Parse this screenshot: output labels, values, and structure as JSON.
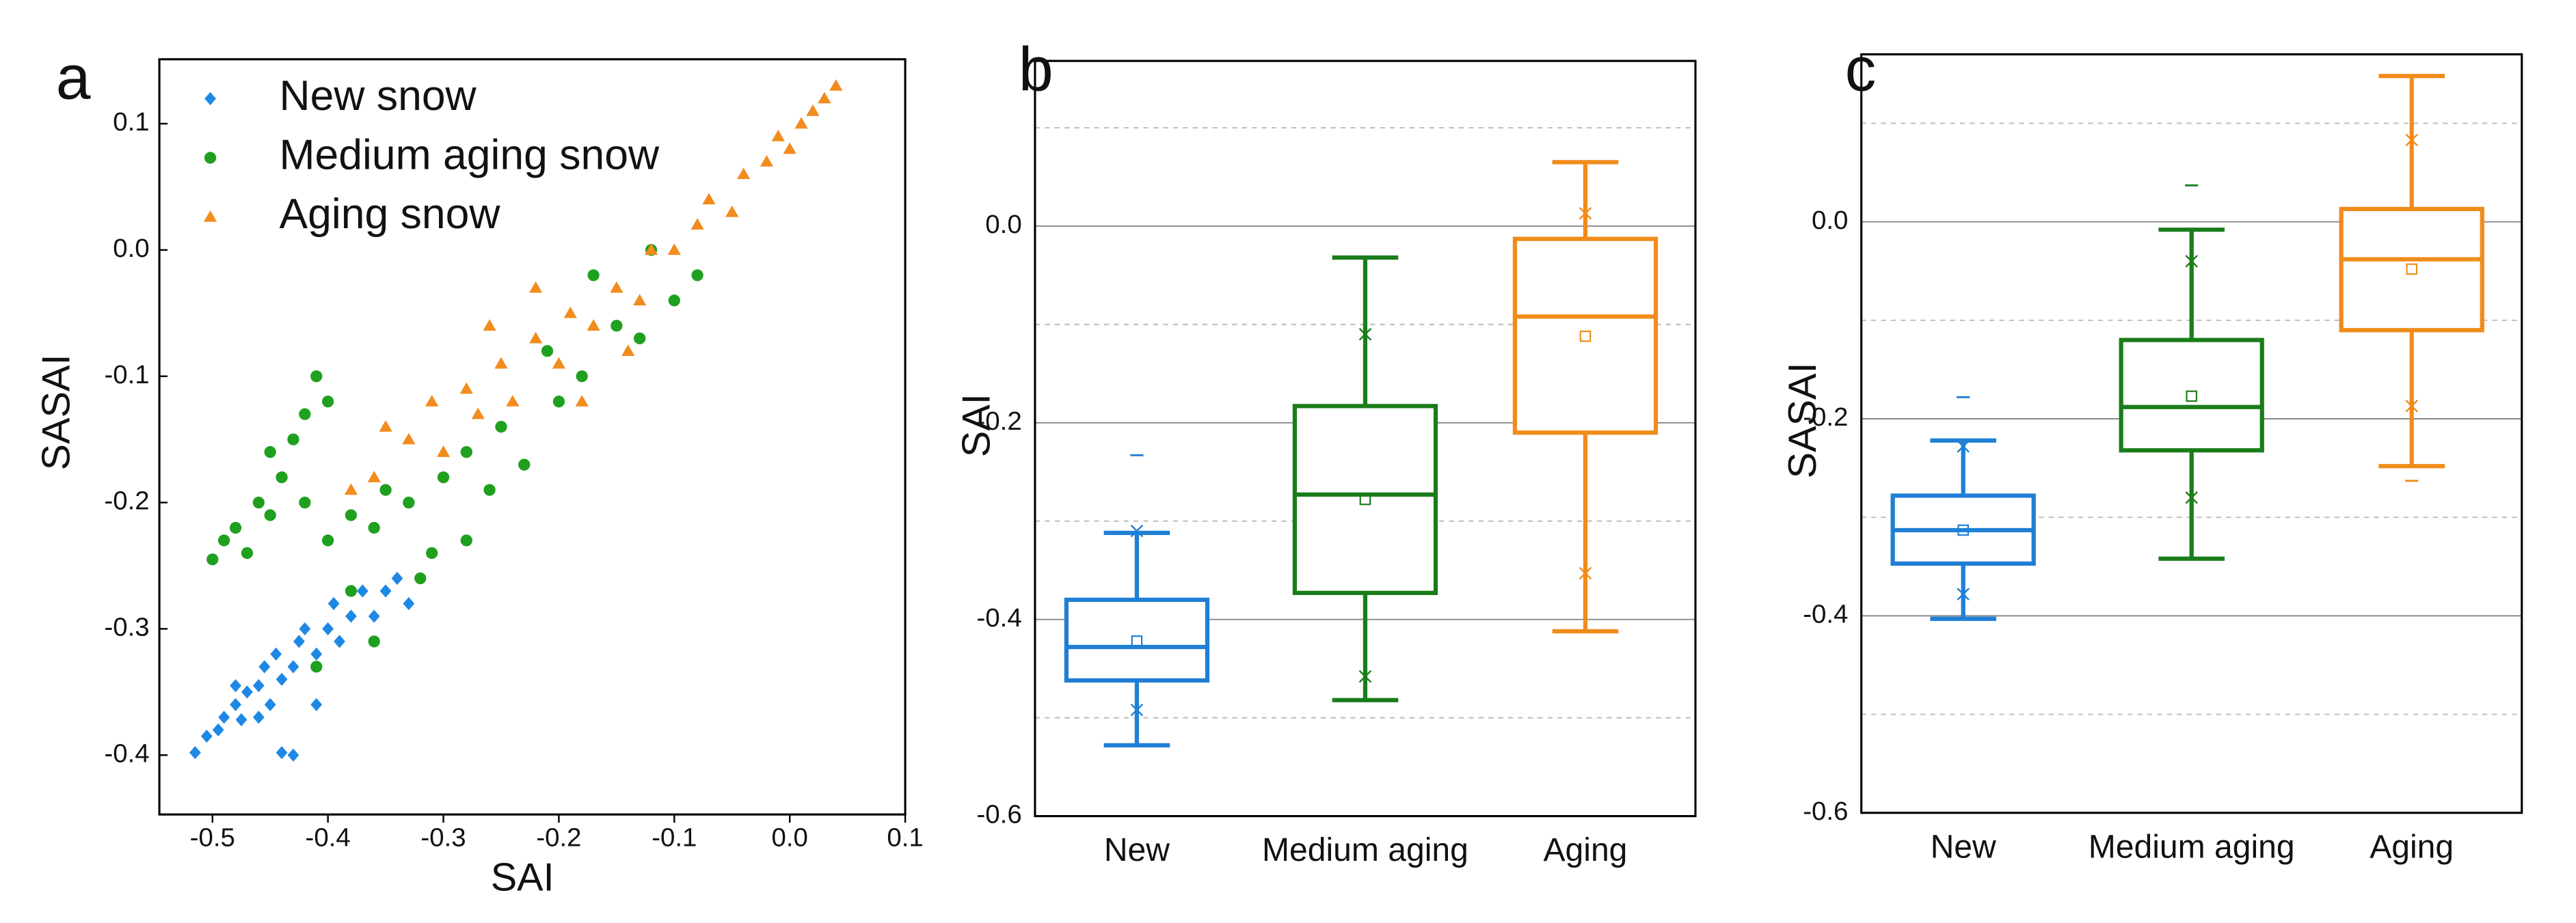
{
  "chart_data": [
    {
      "type": "scatter",
      "panel": "a",
      "x_label": "SAI",
      "y_label": "SASAI",
      "xlim": [
        -0.546,
        0.1
      ],
      "ylim": [
        -0.447,
        0.151
      ],
      "xticks": [
        -0.5,
        -0.4,
        -0.3,
        -0.2,
        -0.1,
        {
          "value": 0,
          "label": "0.0"
        },
        0.1
      ],
      "yticks": [
        0.1,
        {
          "value": 0,
          "label": "0.0"
        },
        -0.1,
        -0.2,
        -0.3,
        -0.4
      ],
      "legend": "upper left",
      "series": [
        {
          "name": "New snow",
          "color": "#1e88e5",
          "marker": "diamond",
          "x": [
            -0.515,
            -0.505,
            -0.495,
            -0.49,
            -0.48,
            -0.475,
            -0.47,
            -0.46,
            -0.455,
            -0.45,
            -0.445,
            -0.44,
            -0.43,
            -0.425,
            -0.42,
            -0.41,
            -0.4,
            -0.395,
            -0.39,
            -0.38,
            -0.37,
            -0.36,
            -0.35,
            -0.34,
            -0.33,
            -0.44,
            -0.43,
            -0.41,
            -0.48,
            -0.46
          ],
          "y": [
            -0.398,
            -0.385,
            -0.38,
            -0.37,
            -0.36,
            -0.372,
            -0.35,
            -0.345,
            -0.33,
            -0.36,
            -0.32,
            -0.34,
            -0.33,
            -0.31,
            -0.3,
            -0.32,
            -0.3,
            -0.28,
            -0.31,
            -0.29,
            -0.27,
            -0.29,
            -0.27,
            -0.26,
            -0.28,
            -0.398,
            -0.4,
            -0.36,
            -0.345,
            -0.37
          ]
        },
        {
          "name": "Medium aging snow",
          "color": "#1fa01f",
          "marker": "circle",
          "x": [
            -0.5,
            -0.49,
            -0.48,
            -0.47,
            -0.46,
            -0.45,
            -0.44,
            -0.43,
            -0.42,
            -0.41,
            -0.4,
            -0.45,
            -0.42,
            -0.4,
            -0.38,
            -0.36,
            -0.35,
            -0.33,
            -0.31,
            -0.3,
            -0.28,
            -0.26,
            -0.25,
            -0.23,
            -0.21,
            -0.2,
            -0.18,
            -0.17,
            -0.15,
            -0.13,
            -0.12,
            -0.1,
            -0.08,
            -0.38,
            -0.36,
            -0.41,
            -0.32,
            -0.28
          ],
          "y": [
            -0.245,
            -0.23,
            -0.22,
            -0.24,
            -0.2,
            -0.21,
            -0.18,
            -0.15,
            -0.13,
            -0.1,
            -0.12,
            -0.16,
            -0.2,
            -0.23,
            -0.21,
            -0.22,
            -0.19,
            -0.2,
            -0.24,
            -0.18,
            -0.16,
            -0.19,
            -0.14,
            -0.17,
            -0.08,
            -0.12,
            -0.1,
            -0.02,
            -0.06,
            -0.07,
            0.0,
            -0.04,
            -0.02,
            -0.27,
            -0.31,
            -0.33,
            -0.26,
            -0.23
          ]
        },
        {
          "name": "Aging snow",
          "color": "#f28c1e",
          "marker": "triangle",
          "x": [
            -0.38,
            -0.36,
            -0.35,
            -0.33,
            -0.31,
            -0.3,
            -0.28,
            -0.27,
            -0.25,
            -0.24,
            -0.22,
            -0.2,
            -0.19,
            -0.17,
            -0.15,
            -0.13,
            -0.12,
            -0.1,
            -0.08,
            -0.07,
            -0.05,
            -0.04,
            -0.02,
            -0.01,
            0.0,
            0.01,
            0.02,
            0.03,
            0.04,
            -0.26,
            -0.22,
            -0.18,
            -0.14
          ],
          "y": [
            -0.19,
            -0.18,
            -0.14,
            -0.15,
            -0.12,
            -0.16,
            -0.11,
            -0.13,
            -0.09,
            -0.12,
            -0.07,
            -0.09,
            -0.05,
            -0.06,
            -0.03,
            -0.04,
            0.0,
            0.0,
            0.02,
            0.04,
            0.03,
            0.06,
            0.07,
            0.09,
            0.08,
            0.1,
            0.11,
            0.12,
            0.13,
            -0.06,
            -0.03,
            -0.12,
            -0.08
          ]
        }
      ]
    },
    {
      "type": "box",
      "panel": "b",
      "y_label": "SAI",
      "ylim": [
        -0.6,
        0.168
      ],
      "yticks": [
        {
          "value": 0,
          "label": "0.0"
        },
        -0.2,
        -0.4,
        -0.6
      ],
      "minor_grid": [
        0.1,
        -0.1,
        -0.3,
        -0.5
      ],
      "categories": [
        "New",
        "Medium aging",
        "Aging"
      ],
      "colors": [
        "#1f7fd6",
        "#1a7d1a",
        "#f08c1a"
      ],
      "boxes": [
        {
          "whisker_low": -0.528,
          "q1": -0.462,
          "median": -0.428,
          "q3": -0.38,
          "whisker_high": -0.312,
          "mean": -0.422,
          "percentile_markers": [
            -0.492,
            -0.31
          ],
          "extremes": [
            -0.233
          ]
        },
        {
          "whisker_low": -0.482,
          "q1": -0.373,
          "median": -0.273,
          "q3": -0.183,
          "whisker_high": -0.032,
          "mean": -0.278,
          "percentile_markers": [
            -0.458,
            -0.11
          ],
          "extremes": []
        },
        {
          "whisker_low": -0.412,
          "q1": -0.21,
          "median": -0.092,
          "q3": -0.013,
          "whisker_high": 0.065,
          "mean": -0.112,
          "percentile_markers": [
            -0.353,
            0.013
          ],
          "extremes": []
        }
      ]
    },
    {
      "type": "box",
      "panel": "c",
      "y_label": "SASAI",
      "ylim": [
        -0.6,
        0.17
      ],
      "yticks": [
        {
          "value": 0,
          "label": "0.0"
        },
        -0.2,
        -0.4,
        -0.6
      ],
      "minor_grid": [
        0.1,
        -0.1,
        -0.3,
        -0.5
      ],
      "categories": [
        "New",
        "Medium aging",
        "Aging"
      ],
      "colors": [
        "#1f7fd6",
        "#1a7d1a",
        "#f08c1a"
      ],
      "boxes": [
        {
          "whisker_low": -0.403,
          "q1": -0.347,
          "median": -0.313,
          "q3": -0.278,
          "whisker_high": -0.222,
          "mean": -0.313,
          "percentile_markers": [
            -0.378,
            -0.228
          ],
          "extremes": [
            -0.178
          ]
        },
        {
          "whisker_low": -0.342,
          "q1": -0.232,
          "median": -0.188,
          "q3": -0.12,
          "whisker_high": -0.008,
          "mean": -0.177,
          "percentile_markers": [
            -0.28,
            -0.04
          ],
          "extremes": [
            0.037
          ]
        },
        {
          "whisker_low": -0.248,
          "q1": -0.11,
          "median": -0.038,
          "q3": 0.013,
          "whisker_high": 0.148,
          "mean": -0.048,
          "percentile_markers": [
            -0.187,
            0.083
          ],
          "extremes": [
            -0.263
          ]
        }
      ]
    }
  ]
}
